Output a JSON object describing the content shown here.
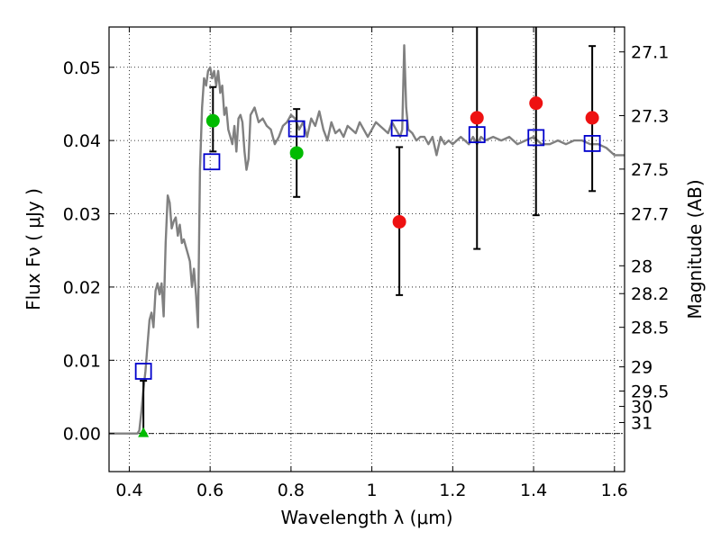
{
  "chart_data": {
    "type": "scatter",
    "xlabel": "Wavelength  λ (μm)",
    "ylabel": "Flux  Fν  ( μJy )",
    "y2label": "Magnitude (AB)",
    "xlim": [
      0.35,
      1.625
    ],
    "ylim": [
      -0.0052,
      0.0555
    ],
    "xticks": [
      0.4,
      0.6,
      0.8,
      1.0,
      1.2,
      1.4,
      1.6
    ],
    "xtick_labels": [
      "0.4",
      "0.6",
      "0.8",
      "1",
      "1.2",
      "1.4",
      "1.6"
    ],
    "yticks": [
      0.0,
      0.01,
      0.02,
      0.03,
      0.04,
      0.05
    ],
    "ytick_labels": [
      "0.00",
      "0.01",
      "0.02",
      "0.03",
      "0.04",
      "0.05"
    ],
    "mag_ticks": [
      {
        "label": "27.1",
        "flux": 0.0521
      },
      {
        "label": "27.3",
        "flux": 0.0434
      },
      {
        "label": "27.5",
        "flux": 0.0361
      },
      {
        "label": "27.7",
        "flux": 0.03
      },
      {
        "label": "28",
        "flux": 0.0229
      },
      {
        "label": "28.2",
        "flux": 0.0191
      },
      {
        "label": "28.5",
        "flux": 0.0145
      },
      {
        "label": "29",
        "flux": 0.0091
      },
      {
        "label": "29.5",
        "flux": 0.0058
      },
      {
        "label": "30",
        "flux": 0.0037
      },
      {
        "label": "31",
        "flux": 0.0015
      }
    ],
    "grid": true,
    "model_sed": {
      "color": "#808080",
      "points": [
        [
          0.35,
          0.0
        ],
        [
          0.42,
          0.0
        ],
        [
          0.425,
          0.0004
        ],
        [
          0.43,
          0.003
        ],
        [
          0.435,
          0.006
        ],
        [
          0.44,
          0.0085
        ],
        [
          0.445,
          0.012
        ],
        [
          0.45,
          0.0155
        ],
        [
          0.455,
          0.0165
        ],
        [
          0.46,
          0.0145
        ],
        [
          0.465,
          0.0195
        ],
        [
          0.47,
          0.0205
        ],
        [
          0.475,
          0.019
        ],
        [
          0.48,
          0.0205
        ],
        [
          0.485,
          0.016
        ],
        [
          0.49,
          0.026
        ],
        [
          0.495,
          0.0325
        ],
        [
          0.5,
          0.0315
        ],
        [
          0.505,
          0.028
        ],
        [
          0.51,
          0.029
        ],
        [
          0.515,
          0.0295
        ],
        [
          0.52,
          0.027
        ],
        [
          0.525,
          0.0285
        ],
        [
          0.53,
          0.026
        ],
        [
          0.535,
          0.0265
        ],
        [
          0.54,
          0.0255
        ],
        [
          0.545,
          0.0245
        ],
        [
          0.55,
          0.0235
        ],
        [
          0.555,
          0.02
        ],
        [
          0.56,
          0.0225
        ],
        [
          0.565,
          0.019
        ],
        [
          0.57,
          0.0145
        ],
        [
          0.575,
          0.036
        ],
        [
          0.58,
          0.0445
        ],
        [
          0.585,
          0.0485
        ],
        [
          0.59,
          0.0475
        ],
        [
          0.595,
          0.0495
        ],
        [
          0.6,
          0.05
        ],
        [
          0.605,
          0.0485
        ],
        [
          0.61,
          0.0495
        ],
        [
          0.615,
          0.0475
        ],
        [
          0.62,
          0.0495
        ],
        [
          0.625,
          0.0465
        ],
        [
          0.63,
          0.0475
        ],
        [
          0.635,
          0.0435
        ],
        [
          0.64,
          0.0445
        ],
        [
          0.645,
          0.0415
        ],
        [
          0.65,
          0.0405
        ],
        [
          0.655,
          0.0395
        ],
        [
          0.66,
          0.042
        ],
        [
          0.665,
          0.0385
        ],
        [
          0.67,
          0.043
        ],
        [
          0.675,
          0.0435
        ],
        [
          0.68,
          0.0425
        ],
        [
          0.685,
          0.0385
        ],
        [
          0.69,
          0.036
        ],
        [
          0.695,
          0.0375
        ],
        [
          0.7,
          0.0435
        ],
        [
          0.71,
          0.0445
        ],
        [
          0.72,
          0.0425
        ],
        [
          0.73,
          0.043
        ],
        [
          0.74,
          0.042
        ],
        [
          0.75,
          0.0415
        ],
        [
          0.76,
          0.0395
        ],
        [
          0.77,
          0.0405
        ],
        [
          0.78,
          0.042
        ],
        [
          0.79,
          0.0425
        ],
        [
          0.8,
          0.0435
        ],
        [
          0.81,
          0.043
        ],
        [
          0.82,
          0.0415
        ],
        [
          0.83,
          0.0425
        ],
        [
          0.84,
          0.0405
        ],
        [
          0.85,
          0.043
        ],
        [
          0.86,
          0.042
        ],
        [
          0.87,
          0.044
        ],
        [
          0.88,
          0.0415
        ],
        [
          0.89,
          0.04
        ],
        [
          0.9,
          0.0425
        ],
        [
          0.91,
          0.041
        ],
        [
          0.92,
          0.0415
        ],
        [
          0.93,
          0.0405
        ],
        [
          0.94,
          0.042
        ],
        [
          0.95,
          0.0415
        ],
        [
          0.96,
          0.041
        ],
        [
          0.97,
          0.0425
        ],
        [
          0.98,
          0.0415
        ],
        [
          0.99,
          0.0405
        ],
        [
          1.0,
          0.0415
        ],
        [
          1.01,
          0.0425
        ],
        [
          1.02,
          0.042
        ],
        [
          1.03,
          0.0415
        ],
        [
          1.04,
          0.041
        ],
        [
          1.05,
          0.0425
        ],
        [
          1.06,
          0.0415
        ],
        [
          1.07,
          0.0405
        ],
        [
          1.075,
          0.0415
        ],
        [
          1.08,
          0.053
        ],
        [
          1.085,
          0.0445
        ],
        [
          1.09,
          0.0415
        ],
        [
          1.1,
          0.041
        ],
        [
          1.11,
          0.04
        ],
        [
          1.12,
          0.0405
        ],
        [
          1.13,
          0.0405
        ],
        [
          1.14,
          0.0395
        ],
        [
          1.15,
          0.0405
        ],
        [
          1.16,
          0.038
        ],
        [
          1.17,
          0.0405
        ],
        [
          1.18,
          0.0395
        ],
        [
          1.19,
          0.04
        ],
        [
          1.2,
          0.0395
        ],
        [
          1.21,
          0.04
        ],
        [
          1.22,
          0.0405
        ],
        [
          1.23,
          0.04
        ],
        [
          1.24,
          0.0395
        ],
        [
          1.25,
          0.0405
        ],
        [
          1.26,
          0.0395
        ],
        [
          1.27,
          0.0405
        ],
        [
          1.28,
          0.04
        ],
        [
          1.3,
          0.0405
        ],
        [
          1.32,
          0.04
        ],
        [
          1.34,
          0.0405
        ],
        [
          1.36,
          0.0395
        ],
        [
          1.38,
          0.04
        ],
        [
          1.4,
          0.0405
        ],
        [
          1.42,
          0.0395
        ],
        [
          1.44,
          0.0395
        ],
        [
          1.46,
          0.04
        ],
        [
          1.48,
          0.0395
        ],
        [
          1.5,
          0.04
        ],
        [
          1.52,
          0.04
        ],
        [
          1.54,
          0.0395
        ],
        [
          1.56,
          0.0395
        ],
        [
          1.58,
          0.039
        ],
        [
          1.6,
          0.038
        ],
        [
          1.625,
          0.038
        ]
      ]
    },
    "model_band_fluxes": {
      "color": "#0000cc",
      "marker": "open-square",
      "points": [
        [
          0.435,
          0.0085
        ],
        [
          0.604,
          0.0371
        ],
        [
          0.814,
          0.0416
        ],
        [
          1.068,
          0.0417
        ],
        [
          1.26,
          0.0408
        ],
        [
          1.406,
          0.0404
        ],
        [
          1.545,
          0.0396
        ]
      ]
    },
    "observed_detections": {
      "color": "#00bb00",
      "marker": "circle",
      "points": [
        {
          "x": 0.607,
          "y": 0.0427
        },
        {
          "x": 0.814,
          "y": 0.0383
        }
      ]
    },
    "observed_upper_limit": {
      "color": "#00bb00",
      "marker": "triangle",
      "points": [
        {
          "x": 0.435,
          "y": 0.0
        }
      ]
    },
    "observed_ir": {
      "color": "#ee1111",
      "marker": "circle",
      "points": [
        {
          "x": 1.068,
          "y": 0.0289
        },
        {
          "x": 1.26,
          "y": 0.0431
        },
        {
          "x": 1.406,
          "y": 0.0451
        },
        {
          "x": 1.545,
          "y": 0.0431
        }
      ]
    },
    "error_bars": [
      {
        "x": 0.435,
        "low": 0.0,
        "high": 0.0072
      },
      {
        "x": 0.607,
        "low": 0.0385,
        "high": 0.0473
      },
      {
        "x": 0.814,
        "low": 0.0323,
        "high": 0.0443
      },
      {
        "x": 1.068,
        "low": 0.0189,
        "high": 0.0391
      },
      {
        "x": 1.26,
        "low": 0.0252,
        "high": 0.056
      },
      {
        "x": 1.406,
        "low": 0.0298,
        "high": 0.056
      },
      {
        "x": 1.545,
        "low": 0.0331,
        "high": 0.0529
      }
    ]
  }
}
